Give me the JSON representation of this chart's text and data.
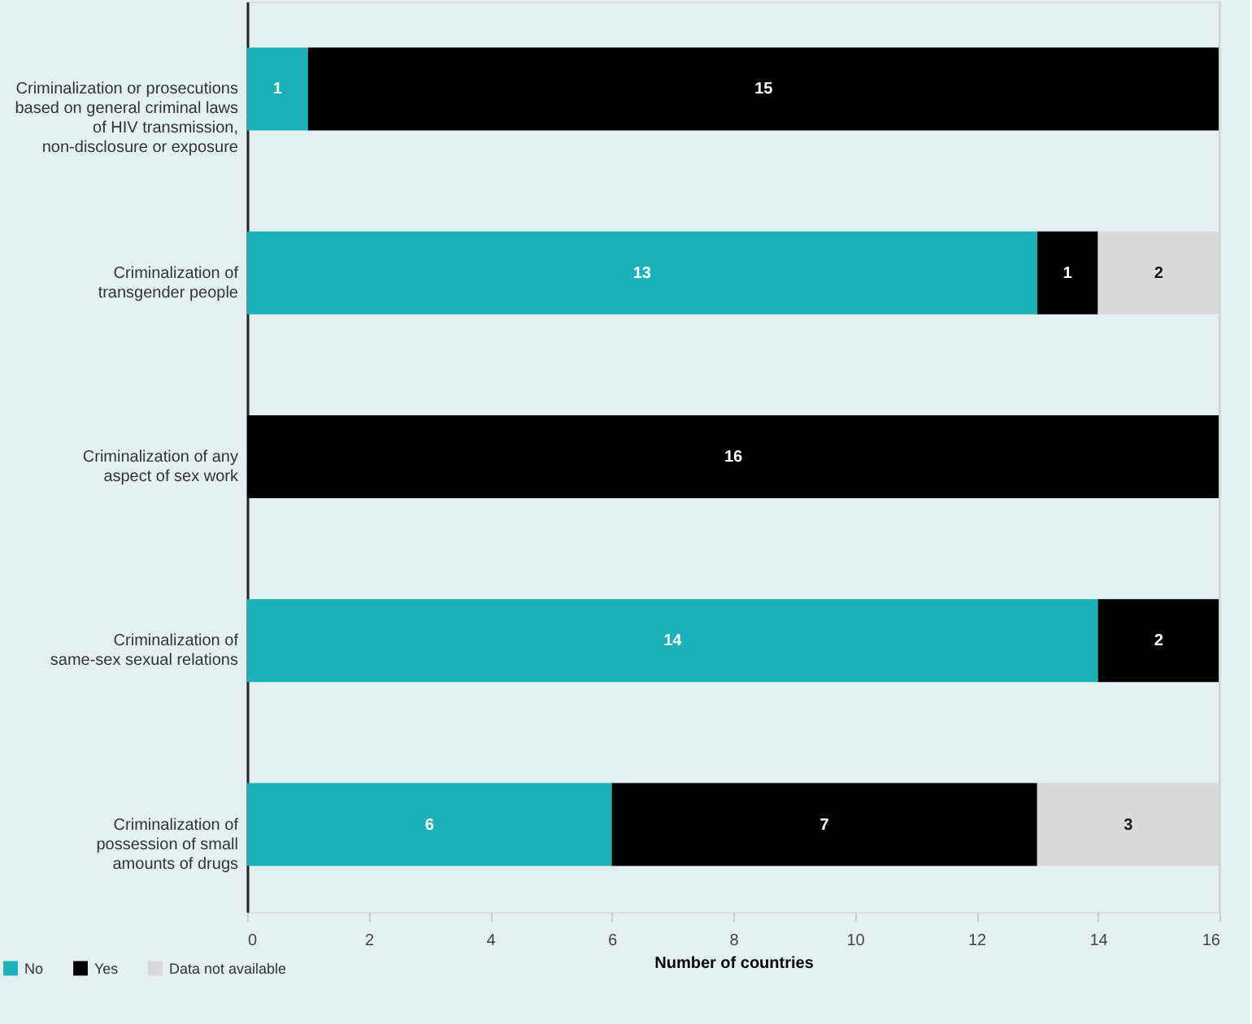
{
  "chart_data": {
    "type": "bar",
    "orientation": "horizontal",
    "stacked": true,
    "xlabel": "Number of countries",
    "categories": [
      "Criminalization or prosecutions\nbased on general criminal laws\nof HIV transmission,\nnon-disclosure or exposure",
      "Criminalization of\ntransgender people",
      "Criminalization of any\naspect of sex work",
      "Criminalization of\nsame-sex sexual relations",
      "Criminalization of\npossession of small\namounts of drugs"
    ],
    "series": [
      {
        "name": "No",
        "color": "#1bb1b8",
        "values": [
          1,
          13,
          null,
          14,
          6
        ]
      },
      {
        "name": "Yes",
        "color": "#000000",
        "values": [
          15,
          1,
          16,
          2,
          7
        ]
      },
      {
        "name": "Data not available",
        "color": "#d9d9d9",
        "values": [
          null,
          2,
          null,
          null,
          3
        ]
      }
    ],
    "xlim": [
      0,
      16
    ],
    "xticks": [
      0,
      2,
      4,
      6,
      8,
      10,
      12,
      14,
      16
    ],
    "data_labels": true,
    "legend": "bottom left",
    "grid": false
  }
}
